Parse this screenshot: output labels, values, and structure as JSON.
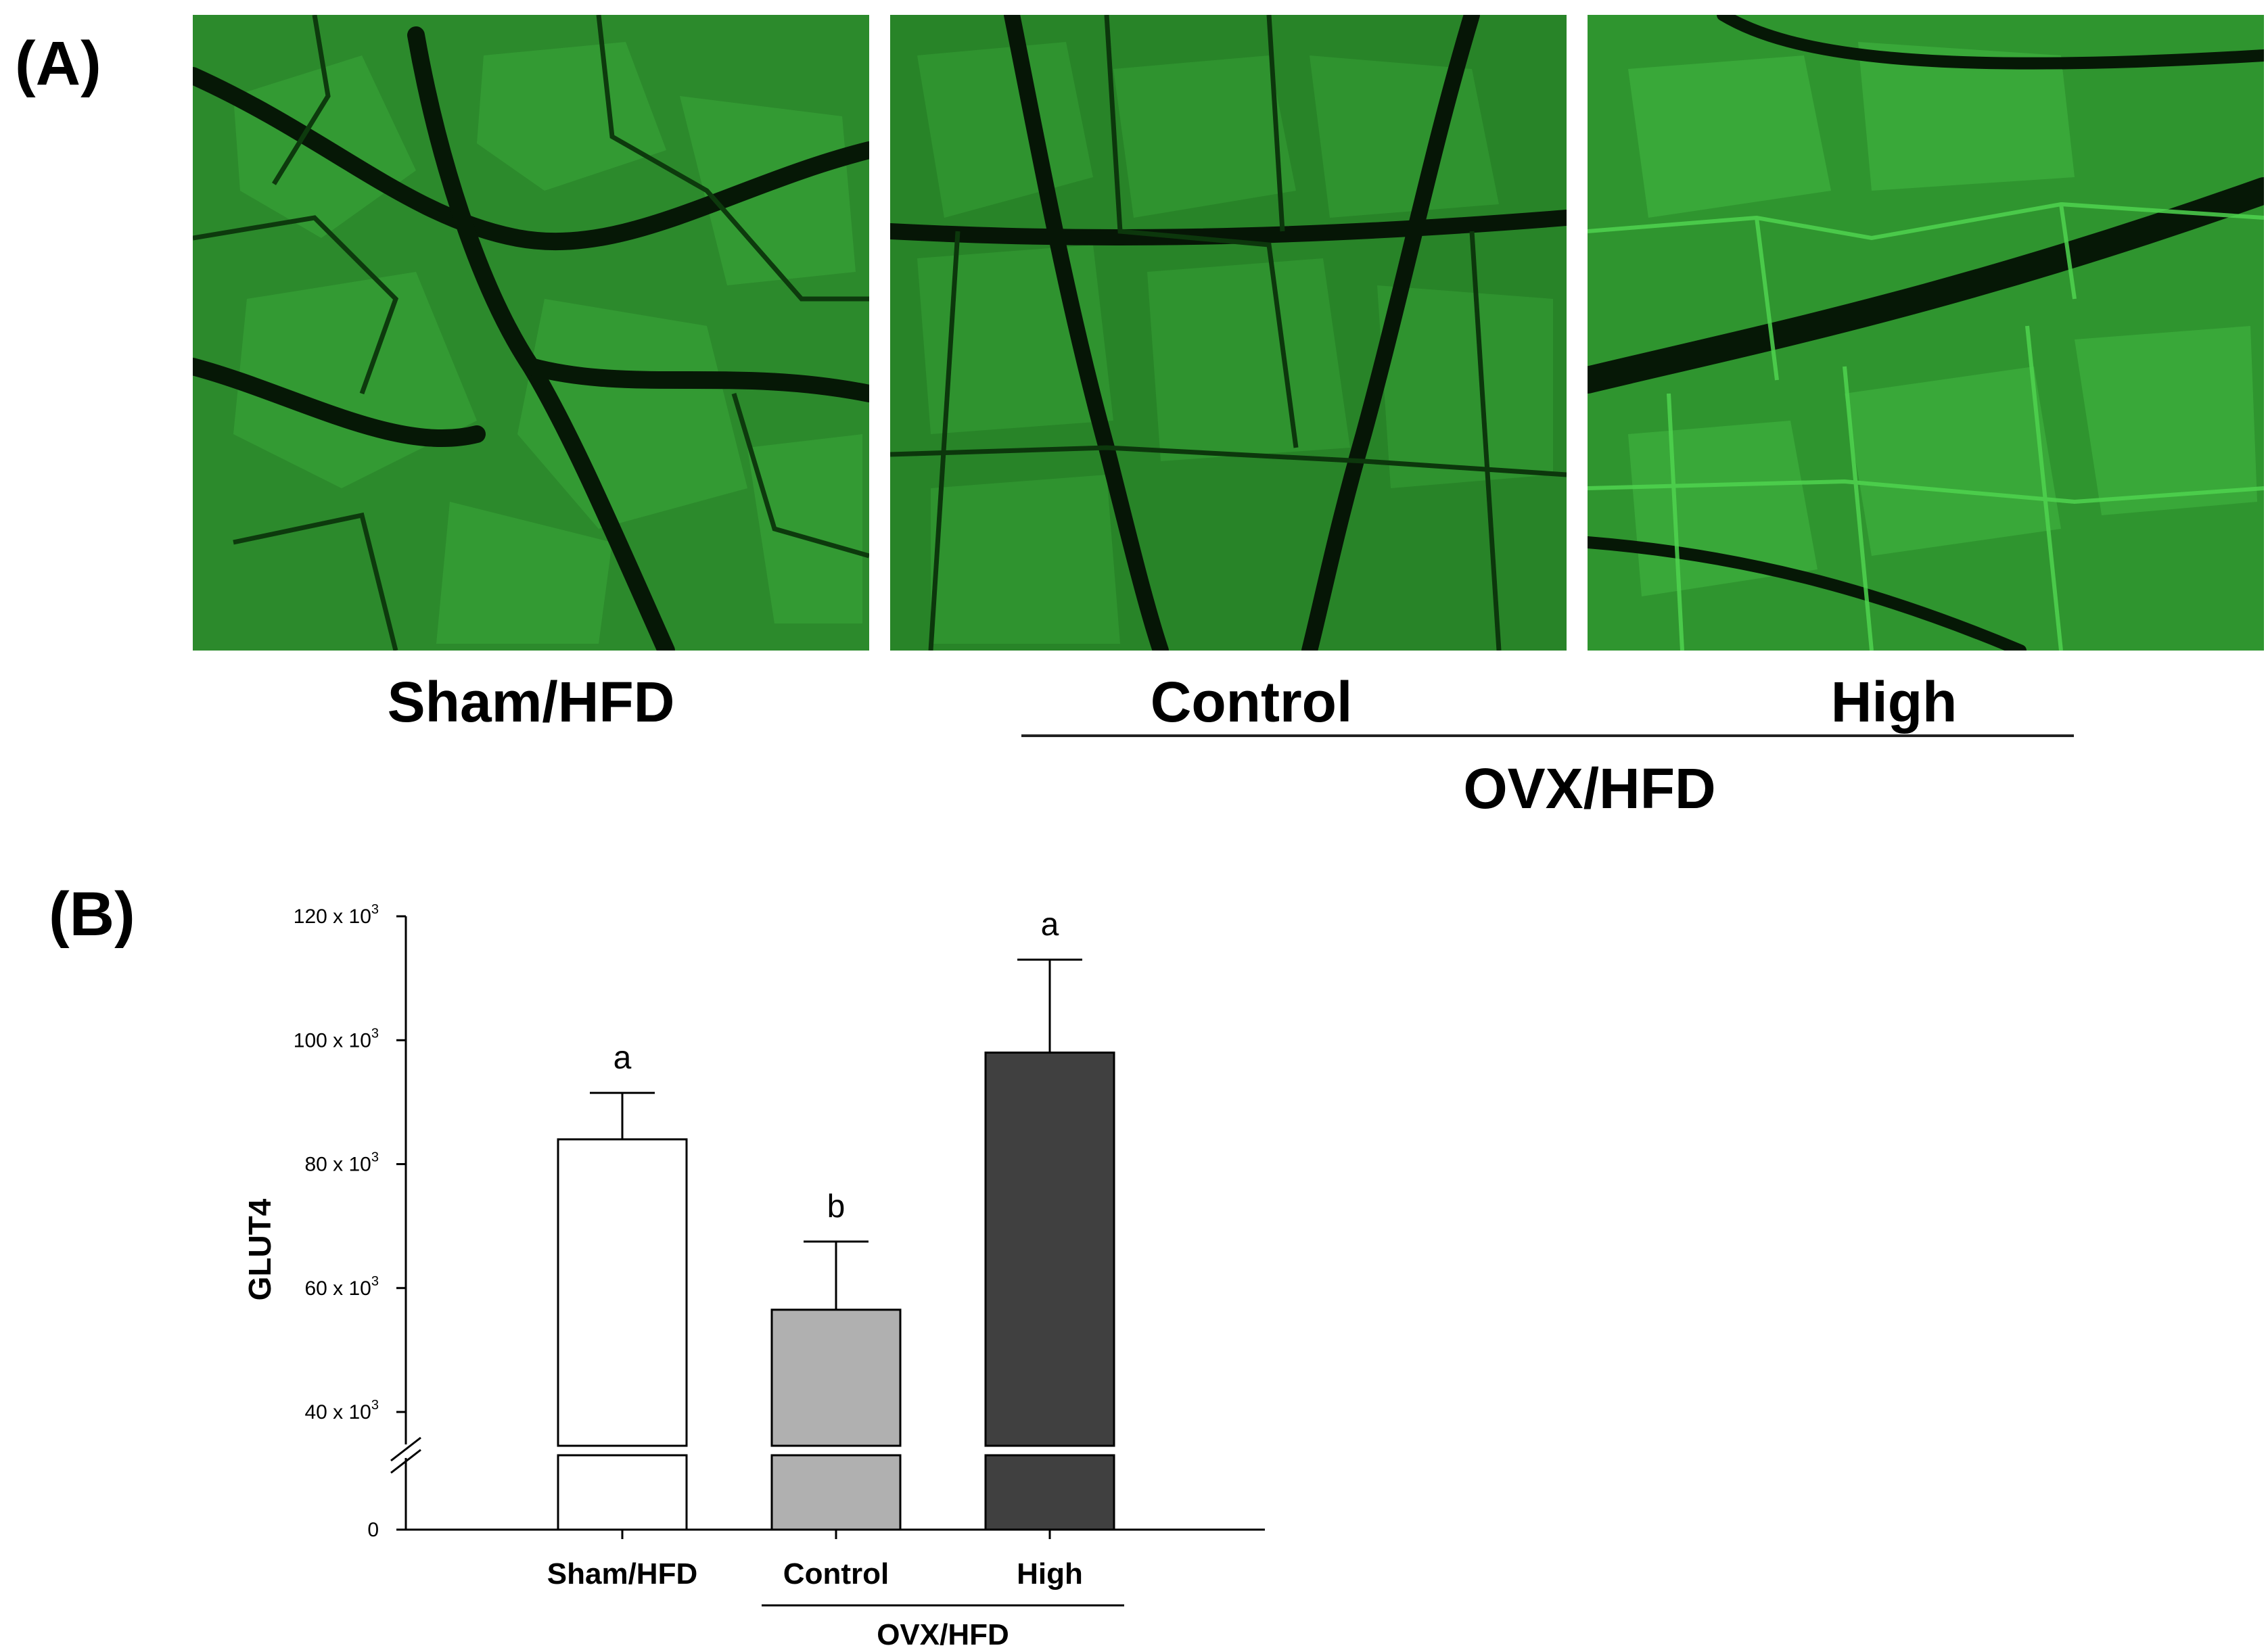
{
  "panel_a": {
    "label": "(A)",
    "images": [
      {
        "caption": "Sham/HFD",
        "stain_color": "#2f9a2f"
      },
      {
        "caption": "Control",
        "stain_color": "#2a8f2a"
      },
      {
        "caption": "High",
        "stain_color": "#38b038"
      }
    ],
    "group_label": "OVX/HFD"
  },
  "panel_b": {
    "label": "(B)"
  },
  "chart_data": {
    "type": "bar",
    "categories": [
      "Sham/HFD",
      "Control",
      "High"
    ],
    "values": [
      84,
      56.5,
      98
    ],
    "errors": [
      7.5,
      11,
      15
    ],
    "significance": [
      "a",
      "b",
      "a"
    ],
    "bar_colors": [
      "#ffffff",
      "#b0b0b0",
      "#404040"
    ],
    "ylabel": "GLUT4",
    "yticks": [
      {
        "value": 0,
        "label": "0",
        "exp": ""
      },
      {
        "value": 40,
        "label": "40 x 10",
        "exp": "3"
      },
      {
        "value": 60,
        "label": "60 x 10",
        "exp": "3"
      },
      {
        "value": 80,
        "label": "80 x 10",
        "exp": "3"
      },
      {
        "value": 100,
        "label": "100 x 10",
        "exp": "3"
      },
      {
        "value": 120,
        "label": "120 x 10",
        "exp": "3"
      }
    ],
    "y_unit_multiplier": 1000,
    "axis_break": [
      0,
      37
    ],
    "group_label": "OVX/HFD",
    "group_categories": [
      "Control",
      "High"
    ]
  }
}
